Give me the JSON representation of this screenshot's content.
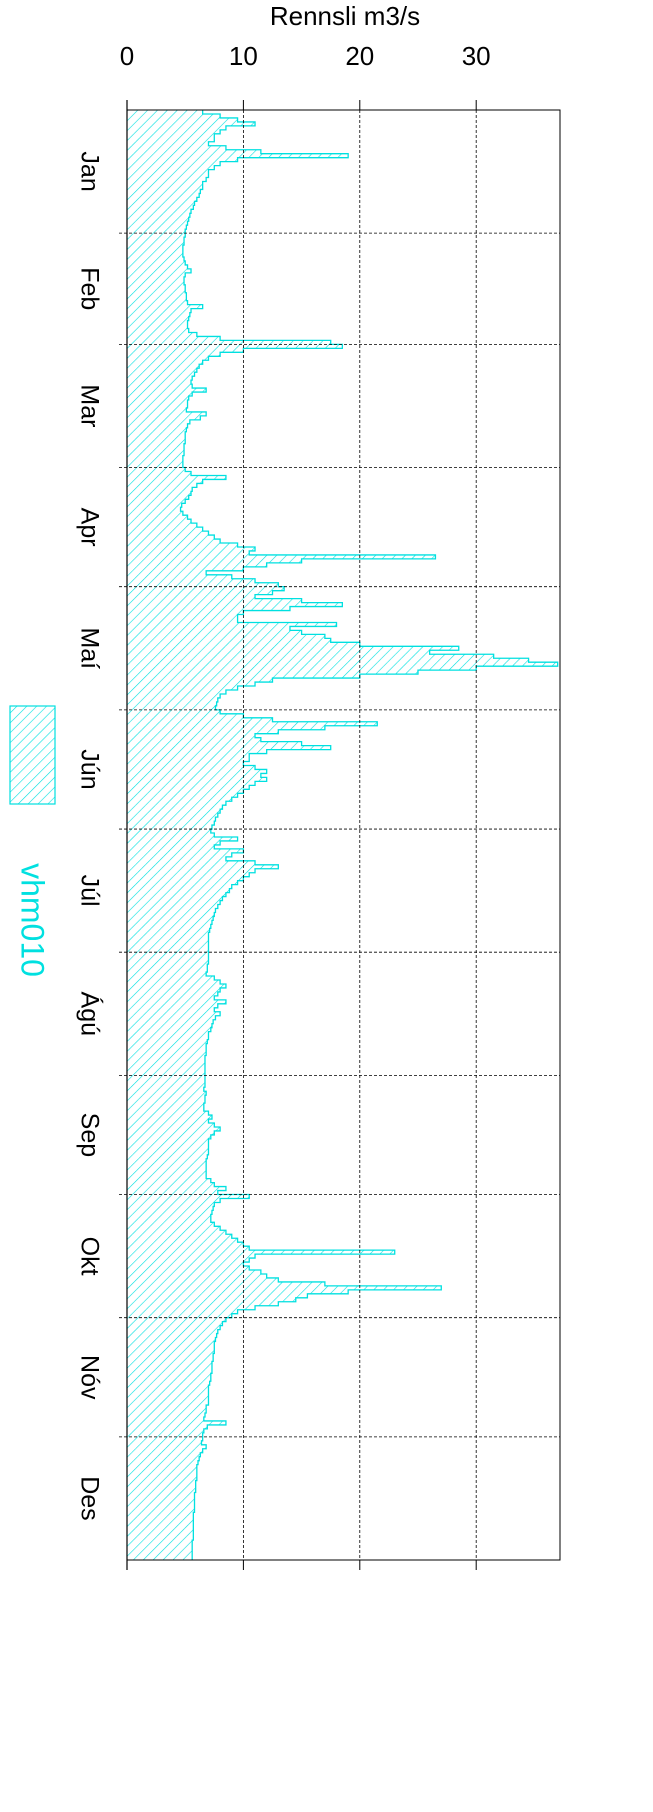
{
  "chart_data": {
    "type": "bar",
    "orientation": "horizontal",
    "y_label": "Rennsli  m3/s",
    "ylim": [
      0,
      37.2
    ],
    "yticks": [
      0,
      10,
      20,
      30
    ],
    "xlim": [
      0,
      365
    ],
    "xticks": [
      {
        "value": 15.5,
        "label": "Jan"
      },
      {
        "value": 45,
        "label": "Feb"
      },
      {
        "value": 74.5,
        "label": "Mar"
      },
      {
        "value": 105,
        "label": "Apr"
      },
      {
        "value": 135.5,
        "label": "Maí"
      },
      {
        "value": 166,
        "label": "Jún"
      },
      {
        "value": 196.5,
        "label": "Júl"
      },
      {
        "value": 227.5,
        "label": "Ágú"
      },
      {
        "value": 258,
        "label": "Sep"
      },
      {
        "value": 288.5,
        "label": "Okt"
      },
      {
        "value": 319,
        "label": "Nóv"
      },
      {
        "value": 349.5,
        "label": "Des"
      }
    ],
    "xgrid": [
      31,
      59,
      90,
      120,
      151,
      181,
      212,
      243,
      273,
      304,
      334
    ],
    "grid": true,
    "series": [
      {
        "name": "vhm010",
        "color": "#00e0e0",
        "values": [
          6.5,
          8,
          9.5,
          11,
          8.5,
          8,
          7.5,
          7.5,
          7,
          8.5,
          11.5,
          19,
          9.5,
          8,
          7.5,
          7,
          7,
          6.8,
          6.5,
          6.5,
          6.3,
          6.2,
          6,
          5.8,
          5.7,
          5.5,
          5.4,
          5.3,
          5.2,
          5.1,
          5.0,
          5,
          4.9,
          4.9,
          4.8,
          4.8,
          4.8,
          4.9,
          5.0,
          5.2,
          5.5,
          5.0,
          4.9,
          4.9,
          5.0,
          5.0,
          5.1,
          5.1,
          5.2,
          6.5,
          5.5,
          5.4,
          5.3,
          5.2,
          5.2,
          5.3,
          6,
          8,
          17.5,
          18.5,
          10,
          8,
          7,
          6.5,
          6.2,
          6,
          5.8,
          5.6,
          5.5,
          5.6,
          6.8,
          5.6,
          5.3,
          5.2,
          5.2,
          5.1,
          6.8,
          6.3,
          5.4,
          5.2,
          5.1,
          5.0,
          5.0,
          5.0,
          4.9,
          4.9,
          4.9,
          4.8,
          4.8,
          4.8,
          5.0,
          5.5,
          8.5,
          6.5,
          6,
          5.6,
          5.5,
          5.3,
          5.0,
          4.7,
          4.6,
          4.8,
          5.2,
          5.5,
          6,
          6.5,
          7,
          7.5,
          8,
          9.5,
          11,
          10.5,
          26.5,
          15,
          12,
          10,
          6.8,
          9,
          11,
          13,
          13.5,
          12.5,
          11,
          15,
          18.5,
          14,
          10,
          9.5,
          9.5,
          18,
          14,
          15,
          17,
          17.5,
          20,
          28.5,
          26,
          31.5,
          34.5,
          37,
          30,
          25,
          20,
          12.5,
          11,
          9.5,
          8.5,
          8,
          7.8,
          7.7,
          7.6,
          8,
          10,
          12.5,
          21.5,
          17,
          13,
          11,
          11.5,
          15,
          17.5,
          12,
          10.5,
          10.5,
          10,
          11,
          12,
          11.5,
          12,
          11,
          10.5,
          10,
          9.5,
          9,
          8.5,
          8.2,
          8,
          7.8,
          7.6,
          7.5,
          7.3,
          7.2,
          7.5,
          9.5,
          8,
          7.5,
          10,
          9,
          8.5,
          11,
          13,
          11,
          10.5,
          10,
          9.5,
          9,
          8.8,
          8.5,
          8.2,
          8,
          7.8,
          7.6,
          7.5,
          7.4,
          7.3,
          7.2,
          7.1,
          7,
          7,
          7,
          7,
          7,
          7,
          7,
          7,
          6.9,
          6.9,
          6.8,
          7.5,
          8,
          8.5,
          8,
          7.8,
          7.5,
          8.5,
          7.8,
          7.5,
          8,
          7.6,
          7.4,
          7.3,
          7.2,
          7,
          7,
          6.9,
          6.8,
          6.8,
          6.8,
          6.7,
          6.7,
          6.7,
          6.7,
          6.7,
          6.7,
          6.7,
          6.7,
          6.6,
          6.8,
          6.7,
          6.7,
          6.6,
          6.6,
          7,
          7.3,
          7,
          7.5,
          8,
          7.5,
          7.2,
          7,
          7,
          7,
          7,
          6.9,
          6.8,
          6.8,
          6.8,
          6.8,
          6.8,
          7.2,
          7.5,
          8.5,
          7.8,
          10.5,
          8,
          7.5,
          7.4,
          7.3,
          7.2,
          7.2,
          7.5,
          8,
          8.5,
          9,
          9.5,
          10,
          10.5,
          23,
          11,
          10.5,
          10,
          10.5,
          11.5,
          12,
          13,
          17,
          27,
          19,
          15.5,
          14.5,
          13,
          11,
          9.5,
          9,
          8.5,
          8.2,
          8,
          7.8,
          7.7,
          7.6,
          7.5,
          7.5,
          7.5,
          7.4,
          7.4,
          7.3,
          7.3,
          7.3,
          7.2,
          7.2,
          7.1,
          7,
          7,
          7,
          7,
          7,
          6.8,
          6.8,
          6.7,
          6.6,
          8.5,
          6.9,
          6.6,
          6.5,
          6.5,
          6.4,
          6.8,
          6.5,
          6.3,
          6.2,
          6.1,
          6,
          6,
          6,
          6,
          5.9,
          5.9,
          5.9,
          5.8,
          5.8,
          5.8,
          5.8,
          5.8,
          5.7,
          5.7,
          5.7,
          5.7,
          5.7,
          5.7,
          5.7,
          5.6,
          5.6,
          5.6,
          5.6,
          5.6
        ]
      }
    ]
  }
}
